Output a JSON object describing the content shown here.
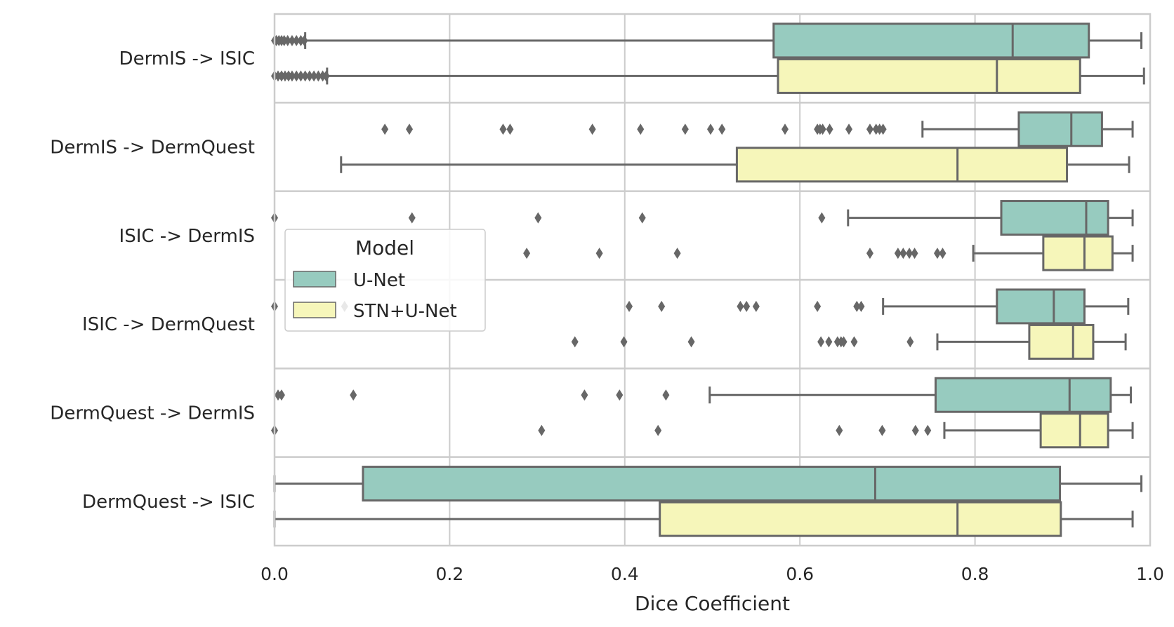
{
  "chart_data": {
    "type": "boxplot",
    "orientation": "horizontal",
    "xlabel": "Dice Coefficient",
    "ylabel": "",
    "xlim": [
      0.0,
      1.0
    ],
    "xticks": [
      "0.0",
      "0.2",
      "0.4",
      "0.6",
      "0.8",
      "1.0"
    ],
    "grid": true,
    "legend": {
      "title": "Model",
      "placement": "center-left"
    },
    "categories": [
      "DermIS -> ISIC",
      "DermIS -> DermQuest",
      "ISIC -> DermIS",
      "ISIC -> DermQuest",
      "DermQuest -> DermIS",
      "DermQuest -> ISIC"
    ],
    "series": [
      {
        "name": "U-Net",
        "color": "#97cbbf",
        "boxes": [
          {
            "whislo": 0.035,
            "q1": 0.57,
            "med": 0.843,
            "q3": 0.93,
            "whishi": 0.99,
            "fliers": [
              0.0,
              0.002,
              0.005,
              0.008,
              0.011,
              0.015,
              0.02,
              0.025,
              0.03,
              0.034
            ]
          },
          {
            "whislo": 0.74,
            "q1": 0.85,
            "med": 0.91,
            "q3": 0.945,
            "whishi": 0.98,
            "fliers": [
              0.126,
              0.154,
              0.261,
              0.269,
              0.363,
              0.418,
              0.469,
              0.498,
              0.511,
              0.583,
              0.62,
              0.623,
              0.626,
              0.634,
              0.656,
              0.68,
              0.687,
              0.691,
              0.695
            ]
          },
          {
            "whislo": 0.655,
            "q1": 0.83,
            "med": 0.927,
            "q3": 0.952,
            "whishi": 0.98,
            "fliers": [
              0.0,
              0.157,
              0.301,
              0.42,
              0.625
            ]
          },
          {
            "whislo": 0.695,
            "q1": 0.825,
            "med": 0.89,
            "q3": 0.925,
            "whishi": 0.975,
            "fliers": [
              0.0,
              0.08,
              0.405,
              0.442,
              0.532,
              0.539,
              0.55,
              0.62,
              0.665,
              0.67
            ]
          },
          {
            "whislo": 0.497,
            "q1": 0.755,
            "med": 0.908,
            "q3": 0.955,
            "whishi": 0.978,
            "fliers": [
              0.004,
              0.008,
              0.09,
              0.354,
              0.394,
              0.447
            ]
          },
          {
            "whislo": 0.0,
            "q1": 0.101,
            "med": 0.686,
            "q3": 0.897,
            "whishi": 0.99,
            "fliers": []
          }
        ]
      },
      {
        "name": "STN+U-Net",
        "color": "#f6f6ba",
        "boxes": [
          {
            "whislo": 0.06,
            "q1": 0.575,
            "med": 0.825,
            "q3": 0.92,
            "whishi": 0.993,
            "fliers": [
              0.0,
              0.004,
              0.008,
              0.012,
              0.016,
              0.02,
              0.025,
              0.03,
              0.035,
              0.04,
              0.045,
              0.05,
              0.055,
              0.059
            ]
          },
          {
            "whislo": 0.076,
            "q1": 0.528,
            "med": 0.78,
            "q3": 0.905,
            "whishi": 0.976,
            "fliers": []
          },
          {
            "whislo": 0.798,
            "q1": 0.878,
            "med": 0.925,
            "q3": 0.957,
            "whishi": 0.98,
            "fliers": [
              0.288,
              0.371,
              0.46,
              0.68,
              0.712,
              0.718,
              0.725,
              0.731,
              0.757,
              0.763
            ]
          },
          {
            "whislo": 0.757,
            "q1": 0.862,
            "med": 0.912,
            "q3": 0.935,
            "whishi": 0.972,
            "fliers": [
              0.343,
              0.399,
              0.476,
              0.624,
              0.633,
              0.643,
              0.647,
              0.65,
              0.662,
              0.726
            ]
          },
          {
            "whislo": 0.765,
            "q1": 0.875,
            "med": 0.92,
            "q3": 0.952,
            "whishi": 0.98,
            "fliers": [
              0.0,
              0.305,
              0.438,
              0.645,
              0.694,
              0.732,
              0.746
            ]
          },
          {
            "whislo": 0.0,
            "q1": 0.44,
            "med": 0.78,
            "q3": 0.898,
            "whishi": 0.98,
            "fliers": []
          }
        ]
      }
    ]
  }
}
